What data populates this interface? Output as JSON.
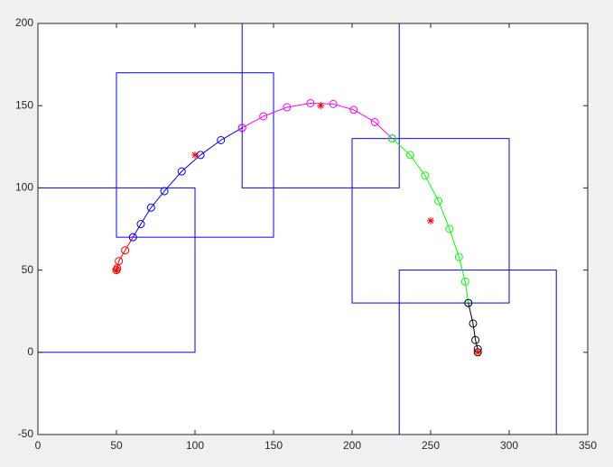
{
  "chart_data": {
    "type": "line",
    "xlim": [
      0,
      350
    ],
    "xticks": [
      0,
      50,
      100,
      150,
      200,
      250,
      300,
      350
    ],
    "ylim": [
      -50,
      200
    ],
    "yticks": [
      -50,
      0,
      50,
      100,
      150,
      200
    ],
    "grid": false,
    "rectangles": {
      "color": "#0000ff",
      "items": [
        {
          "x": [
            0,
            100
          ],
          "y": [
            0,
            100
          ]
        },
        {
          "x": [
            50,
            150
          ],
          "y": [
            70,
            170
          ]
        },
        {
          "x": [
            130,
            230
          ],
          "y": [
            100,
            200
          ]
        },
        {
          "x": [
            200,
            300
          ],
          "y": [
            30,
            130
          ]
        },
        {
          "x": [
            230,
            330
          ],
          "y": [
            -50,
            50
          ]
        }
      ]
    },
    "series": [
      {
        "color": "#ff0000",
        "marker": "o",
        "x": [
          50,
          50.5,
          51.5,
          55.5,
          60.5
        ],
        "values": [
          50,
          51,
          55.5,
          62,
          70
        ]
      },
      {
        "color": "#0000ff",
        "marker": "o",
        "x": [
          60.5,
          65.5,
          72,
          80.5,
          91.5,
          103.5,
          116.5,
          130
        ],
        "values": [
          70,
          78,
          88,
          98,
          110,
          120,
          129,
          136.5
        ]
      },
      {
        "color": "#ff00ff",
        "marker": "o",
        "x": [
          130,
          143.5,
          158.5,
          173.5,
          188,
          201,
          214.5,
          225.5
        ],
        "values": [
          136.5,
          143.5,
          149,
          151.5,
          151,
          147.5,
          140,
          130
        ]
      },
      {
        "color": "#00ff00",
        "marker": "o",
        "x": [
          225.5,
          237,
          246.5,
          255,
          262,
          268,
          272,
          274
        ],
        "values": [
          130,
          120,
          107.5,
          92,
          75,
          58,
          43,
          30
        ]
      },
      {
        "color": "#000000",
        "marker": "o",
        "x": [
          274,
          277,
          278.5,
          280,
          280
        ],
        "values": [
          30,
          17.5,
          7.5,
          2,
          0
        ]
      },
      {
        "color": "#ff0000",
        "marker": "*",
        "line": false,
        "x": [
          50,
          100,
          180,
          250,
          280
        ],
        "values": [
          50,
          120,
          150,
          80,
          0
        ]
      }
    ]
  }
}
